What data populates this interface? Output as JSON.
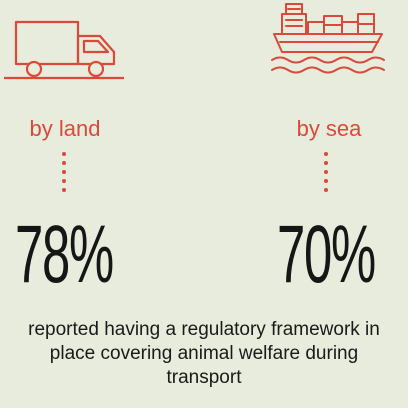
{
  "land": {
    "label": "by land",
    "percent": "78%",
    "icon": "truck-icon"
  },
  "sea": {
    "label": "by sea",
    "percent": "70%",
    "icon": "cargo-ship-icon"
  },
  "caption": "reported having a regulatory framework in place covering animal welfare during transport",
  "colors": {
    "accent": "#d94a3b",
    "text": "#161616",
    "background": "#e8ecdc"
  }
}
